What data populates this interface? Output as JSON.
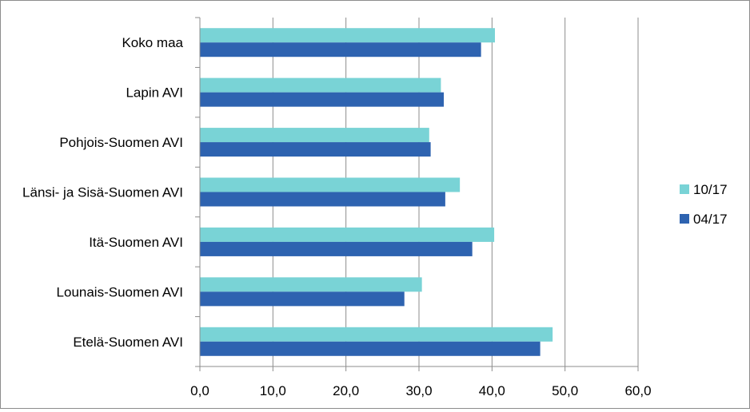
{
  "chart_data": {
    "type": "bar",
    "orientation": "horizontal",
    "categories": [
      "Koko maa",
      "Lapin AVI",
      "Pohjois-Suomen AVI",
      "Länsi- ja Sisä-Suomen AVI",
      "Itä-Suomen AVI",
      "Lounais-Suomen AVI",
      "Etelä-Suomen AVI"
    ],
    "series": [
      {
        "name": "10/17",
        "color": "#79d3d6",
        "values": [
          40.4,
          33.0,
          31.4,
          35.6,
          40.3,
          30.4,
          48.3
        ]
      },
      {
        "name": "04/17",
        "color": "#2e63b0",
        "values": [
          38.5,
          33.4,
          31.6,
          33.6,
          37.3,
          28.0,
          46.6
        ]
      }
    ],
    "xlim": [
      0,
      60
    ],
    "ticks": [
      "0,0",
      "10,0",
      "20,0",
      "30,0",
      "40,0",
      "50,0",
      "60,0"
    ],
    "tick_values": [
      0,
      10,
      20,
      30,
      40,
      50,
      60
    ],
    "grid": true,
    "legend_position": "right",
    "title": "",
    "xlabel": "",
    "ylabel": ""
  }
}
